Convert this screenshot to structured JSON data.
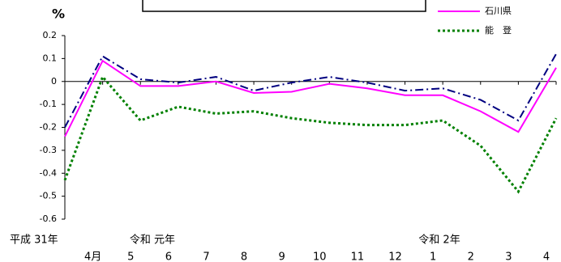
{
  "chart_data": {
    "type": "line",
    "y_label": "%",
    "categories": [
      null,
      "4月",
      "5",
      "6",
      "7",
      "8",
      "9",
      "10",
      "11",
      "12",
      "1",
      "2",
      "3",
      "4"
    ],
    "annotations": [
      "平成 31年",
      "令和 元年",
      "令和 2年"
    ],
    "series": [
      {
        "name": "石川県",
        "color": "#ff00ff",
        "dash": "solid",
        "values": [
          -0.24,
          0.09,
          -0.02,
          -0.02,
          0.0,
          -0.05,
          -0.045,
          -0.01,
          -0.03,
          -0.06,
          -0.06,
          -0.13,
          -0.22,
          0.06
        ]
      },
      {
        "name": "能　登",
        "color": "#008000",
        "dash": "dotted",
        "values": [
          -0.43,
          0.02,
          -0.17,
          -0.11,
          -0.14,
          -0.13,
          -0.16,
          -0.18,
          -0.19,
          -0.19,
          -0.17,
          -0.28,
          -0.48,
          -0.16
        ]
      },
      {
        "color": "#000080",
        "dash": "dashdot",
        "values": [
          -0.2,
          0.11,
          0.01,
          -0.005,
          0.02,
          -0.04,
          -0.005,
          0.02,
          -0.005,
          -0.04,
          -0.03,
          -0.08,
          -0.17,
          0.12
        ]
      }
    ],
    "ylim": [
      -0.6,
      0.2
    ],
    "yticks": [
      0.2,
      0.1,
      0,
      -0.1,
      -0.2,
      -0.3,
      -0.4,
      -0.5,
      -0.6
    ],
    "legend": "top-right"
  }
}
